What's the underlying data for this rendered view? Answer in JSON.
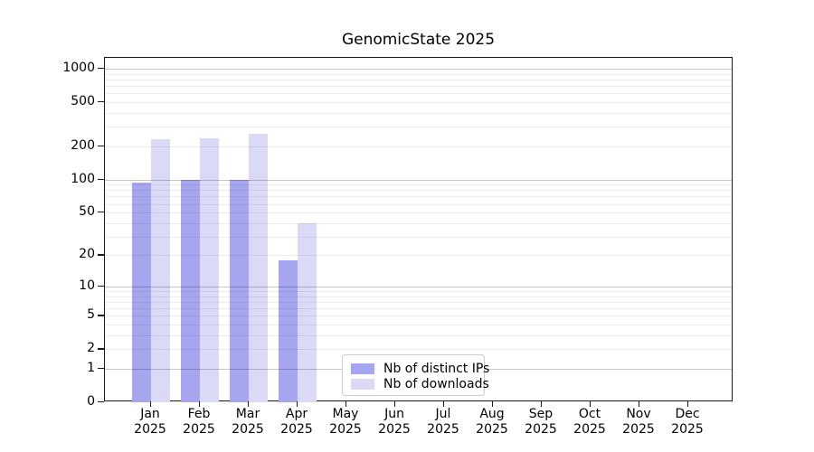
{
  "title": "GenomicState 2025",
  "chart_data": {
    "type": "bar",
    "title": "GenomicState 2025",
    "xlabel": "",
    "ylabel": "",
    "year": "2025",
    "months": [
      "Jan",
      "Feb",
      "Mar",
      "Apr",
      "May",
      "Jun",
      "Jul",
      "Aug",
      "Sep",
      "Oct",
      "Nov",
      "Dec"
    ],
    "categories": [
      "Jan 2025",
      "Feb 2025",
      "Mar 2025",
      "Apr 2025",
      "May 2025",
      "Jun 2025",
      "Jul 2025",
      "Aug 2025",
      "Sep 2025",
      "Oct 2025",
      "Nov 2025",
      "Dec 2025"
    ],
    "series": [
      {
        "name": "Nb of distinct IPs",
        "color": "#a5a5f0",
        "values": [
          94,
          100,
          100,
          18,
          0,
          0,
          0,
          0,
          0,
          0,
          0,
          0
        ]
      },
      {
        "name": "Nb of downloads",
        "color": "#dadaf7",
        "values": [
          233,
          237,
          258,
          40,
          0,
          0,
          0,
          0,
          0,
          0,
          0,
          0
        ]
      }
    ],
    "yscale": "log10(x+1)",
    "ylim": [
      0,
      1258
    ],
    "yticks": [
      0,
      1,
      2,
      5,
      10,
      20,
      50,
      100,
      200,
      500,
      1000
    ],
    "gridlines": {
      "major": [
        1,
        10,
        100,
        1000
      ],
      "minor": [
        2,
        3,
        4,
        5,
        6,
        7,
        8,
        9,
        20,
        30,
        40,
        50,
        60,
        70,
        80,
        90,
        200,
        300,
        400,
        500,
        600,
        700,
        800,
        900
      ]
    },
    "legend": {
      "position": "inside-bottom-center",
      "entries": [
        "Nb of distinct IPs",
        "Nb of downloads"
      ]
    },
    "grid": "on"
  }
}
